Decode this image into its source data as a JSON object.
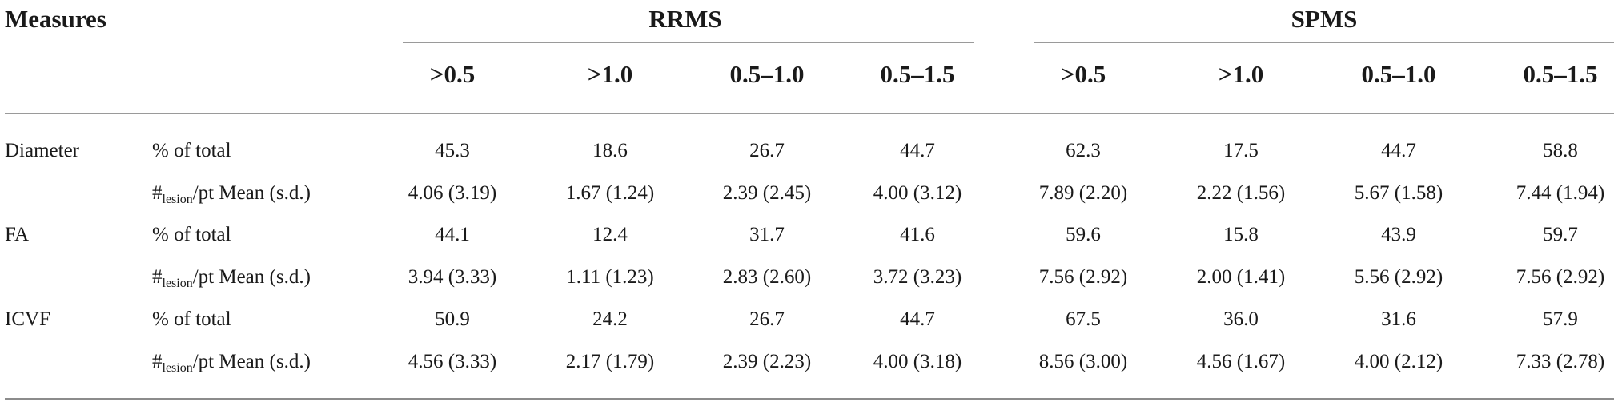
{
  "header": {
    "measures_label": "Measures",
    "groups": [
      "RRMS",
      "SPMS"
    ],
    "subheaders": [
      ">0.5",
      ">1.0",
      "0.5–1.0",
      "0.5–1.5",
      ">0.5",
      ">1.0",
      "0.5–1.0",
      "0.5–1.5"
    ]
  },
  "row_labels": {
    "percent": "% of total",
    "lesion_hash": "#",
    "lesion_sub": "lesion",
    "lesion_tail": "/pt Mean (s.d.)"
  },
  "measures": [
    {
      "name": "Diameter",
      "percent": [
        "45.3",
        "18.6",
        "26.7",
        "44.7",
        "62.3",
        "17.5",
        "44.7",
        "58.8"
      ],
      "mean": [
        "4.06 (3.19)",
        "1.67 (1.24)",
        "2.39 (2.45)",
        "4.00 (3.12)",
        "7.89 (2.20)",
        "2.22 (1.56)",
        "5.67 (1.58)",
        "7.44 (1.94)"
      ]
    },
    {
      "name": "FA",
      "percent": [
        "44.1",
        "12.4",
        "31.7",
        "41.6",
        "59.6",
        "15.8",
        "43.9",
        "59.7"
      ],
      "mean": [
        "3.94 (3.33)",
        "1.11 (1.23)",
        "2.83 (2.60)",
        "3.72 (3.23)",
        "7.56 (2.92)",
        "2.00 (1.41)",
        "5.56 (2.92)",
        "7.56 (2.92)"
      ]
    },
    {
      "name": "ICVF",
      "percent": [
        "50.9",
        "24.2",
        "26.7",
        "44.7",
        "67.5",
        "36.0",
        "31.6",
        "57.9"
      ],
      "mean": [
        "4.56 (3.33)",
        "2.17 (1.79)",
        "2.39 (2.23)",
        "4.00 (3.18)",
        "8.56 (3.00)",
        "4.56 (1.67)",
        "4.00 (2.12)",
        "7.33 (2.78)"
      ]
    }
  ]
}
